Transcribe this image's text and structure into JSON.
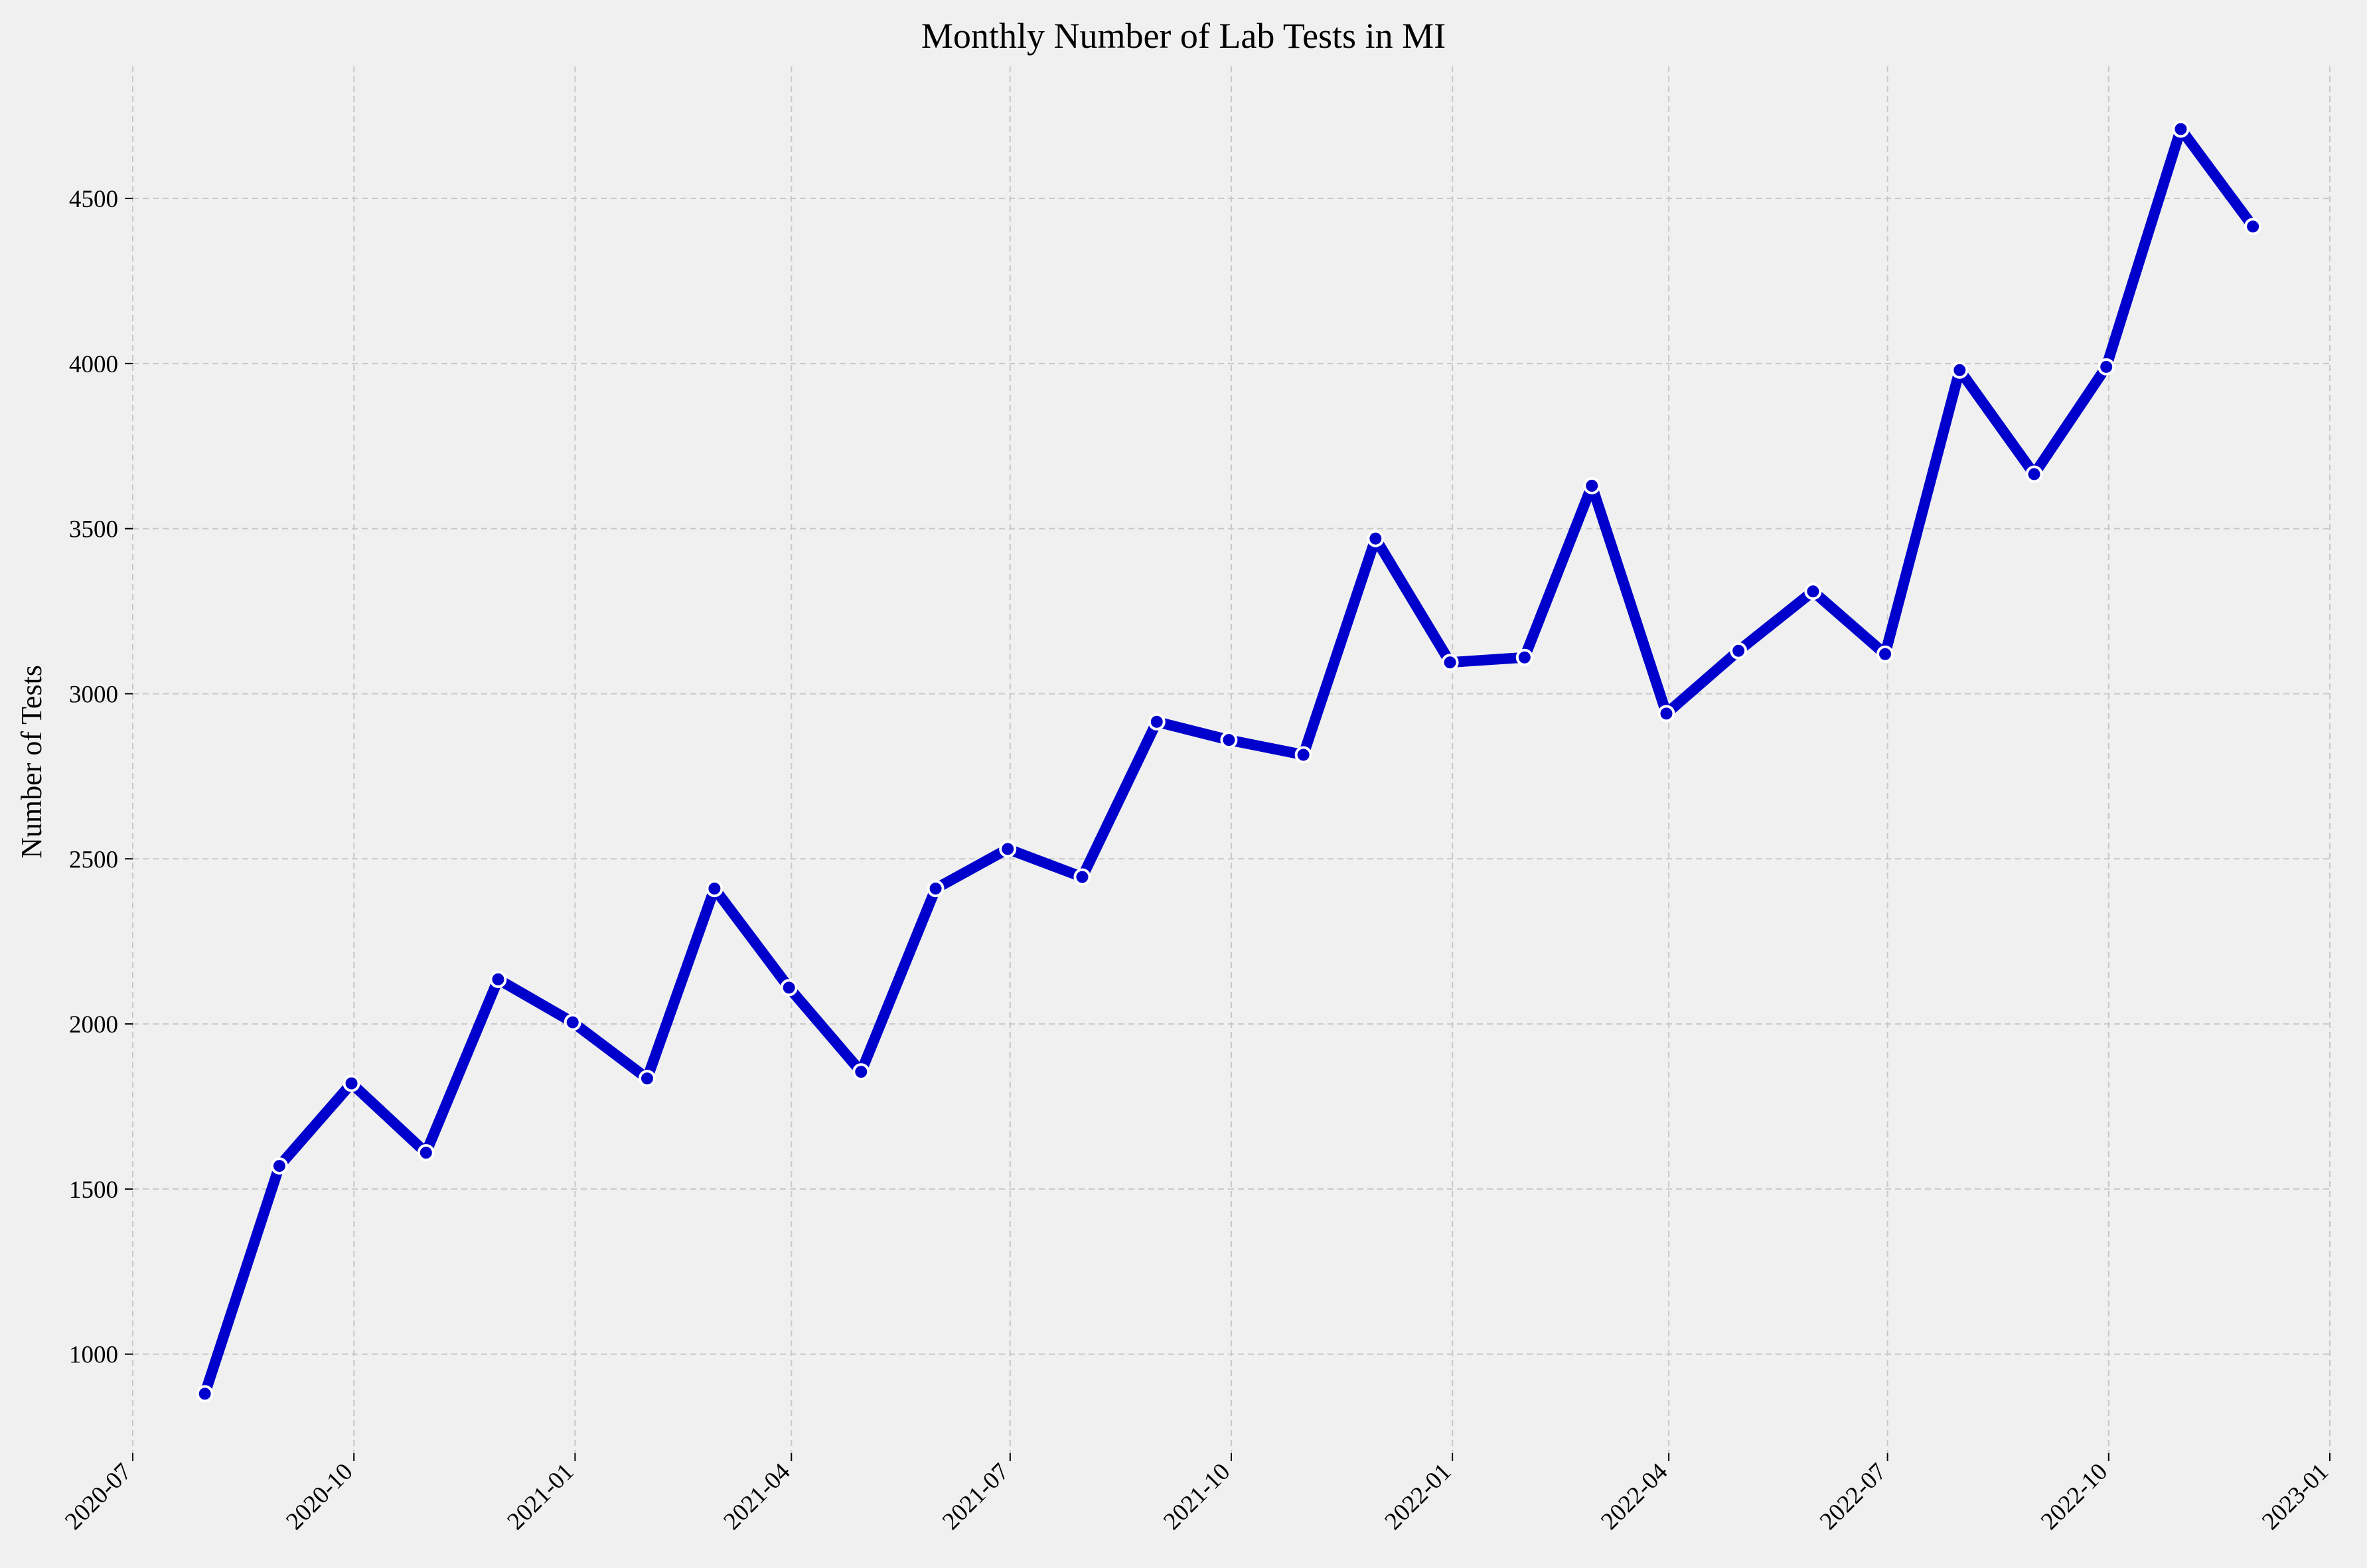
{
  "chart_data": {
    "type": "line",
    "title": "Monthly Number of Lab Tests in MI",
    "xlabel": "",
    "ylabel": "Number of Tests",
    "x_ticks": [
      "2020-07",
      "2020-10",
      "2021-01",
      "2021-04",
      "2021-07",
      "2021-10",
      "2022-01",
      "2022-04",
      "2022-07",
      "2022-10",
      "2023-01"
    ],
    "y_ticks": [
      1000,
      1500,
      2000,
      2500,
      3000,
      3500,
      4000,
      4500
    ],
    "xlim": [
      "2020-07-01",
      "2023-01-01"
    ],
    "ylim": [
      700,
      4900
    ],
    "grid": true,
    "line_color": "#0000cc",
    "marker_edge_color": "#ffffff",
    "series": [
      {
        "x": [
          "2020-07-31",
          "2020-08-31",
          "2020-09-30",
          "2020-10-31",
          "2020-11-30",
          "2020-12-31",
          "2021-01-31",
          "2021-02-28",
          "2021-03-31",
          "2021-04-30",
          "2021-05-31",
          "2021-06-30",
          "2021-07-31",
          "2021-08-31",
          "2021-09-30",
          "2021-10-31",
          "2021-11-30",
          "2021-12-31",
          "2022-01-31",
          "2022-02-28",
          "2022-03-31",
          "2022-04-30",
          "2022-05-31",
          "2022-06-30",
          "2022-07-31",
          "2022-08-31",
          "2022-09-30",
          "2022-10-31",
          "2022-11-30"
        ],
        "values": [
          880,
          1570,
          1820,
          1610,
          2135,
          2005,
          1835,
          2410,
          2110,
          1855,
          2410,
          2530,
          2445,
          2915,
          2860,
          2815,
          3470,
          3095,
          3110,
          3630,
          2940,
          3130,
          3310,
          3120,
          3980,
          3665,
          3990,
          4710,
          4415
        ]
      }
    ]
  }
}
